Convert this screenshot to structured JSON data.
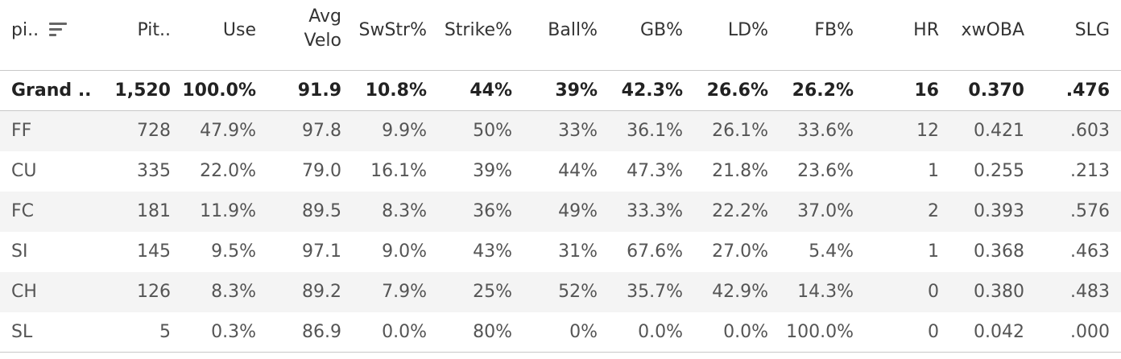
{
  "columns": {
    "pitch": "pi..",
    "pitches": "Pit..",
    "use": "Use",
    "avg_velo_line1": "Avg",
    "avg_velo_line2": "Velo",
    "swstr": "SwStr%",
    "strike": "Strike%",
    "ball": "Ball%",
    "gb": "GB%",
    "ld": "LD%",
    "fb": "FB%",
    "hr": "HR",
    "xwoba": "xwOBA",
    "slg": "SLG"
  },
  "sort_icon": "sort-descending-icon",
  "grand_total": {
    "pitch": "Grand ..",
    "pitches": "1,520",
    "use": "100.0%",
    "avg_velo": "91.9",
    "swstr": "10.8%",
    "strike": "44%",
    "ball": "39%",
    "gb": "42.3%",
    "ld": "26.6%",
    "fb": "26.2%",
    "hr": "16",
    "xwoba": "0.370",
    "slg": ".476"
  },
  "rows": [
    {
      "pitch": "FF",
      "pitches": "728",
      "use": "47.9%",
      "avg_velo": "97.8",
      "swstr": "9.9%",
      "strike": "50%",
      "ball": "33%",
      "gb": "36.1%",
      "ld": "26.1%",
      "fb": "33.6%",
      "hr": "12",
      "xwoba": "0.421",
      "slg": ".603"
    },
    {
      "pitch": "CU",
      "pitches": "335",
      "use": "22.0%",
      "avg_velo": "79.0",
      "swstr": "16.1%",
      "strike": "39%",
      "ball": "44%",
      "gb": "47.3%",
      "ld": "21.8%",
      "fb": "23.6%",
      "hr": "1",
      "xwoba": "0.255",
      "slg": ".213"
    },
    {
      "pitch": "FC",
      "pitches": "181",
      "use": "11.9%",
      "avg_velo": "89.5",
      "swstr": "8.3%",
      "strike": "36%",
      "ball": "49%",
      "gb": "33.3%",
      "ld": "22.2%",
      "fb": "37.0%",
      "hr": "2",
      "xwoba": "0.393",
      "slg": ".576"
    },
    {
      "pitch": "SI",
      "pitches": "145",
      "use": "9.5%",
      "avg_velo": "97.1",
      "swstr": "9.0%",
      "strike": "43%",
      "ball": "31%",
      "gb": "67.6%",
      "ld": "27.0%",
      "fb": "5.4%",
      "hr": "1",
      "xwoba": "0.368",
      "slg": ".463"
    },
    {
      "pitch": "CH",
      "pitches": "126",
      "use": "8.3%",
      "avg_velo": "89.2",
      "swstr": "7.9%",
      "strike": "25%",
      "ball": "52%",
      "gb": "35.7%",
      "ld": "42.9%",
      "fb": "14.3%",
      "hr": "0",
      "xwoba": "0.380",
      "slg": ".483"
    },
    {
      "pitch": "SL",
      "pitches": "5",
      "use": "0.3%",
      "avg_velo": "86.9",
      "swstr": "0.0%",
      "strike": "80%",
      "ball": "0%",
      "gb": "0.0%",
      "ld": "0.0%",
      "fb": "100.0%",
      "hr": "0",
      "xwoba": "0.042",
      "slg": ".000"
    }
  ]
}
